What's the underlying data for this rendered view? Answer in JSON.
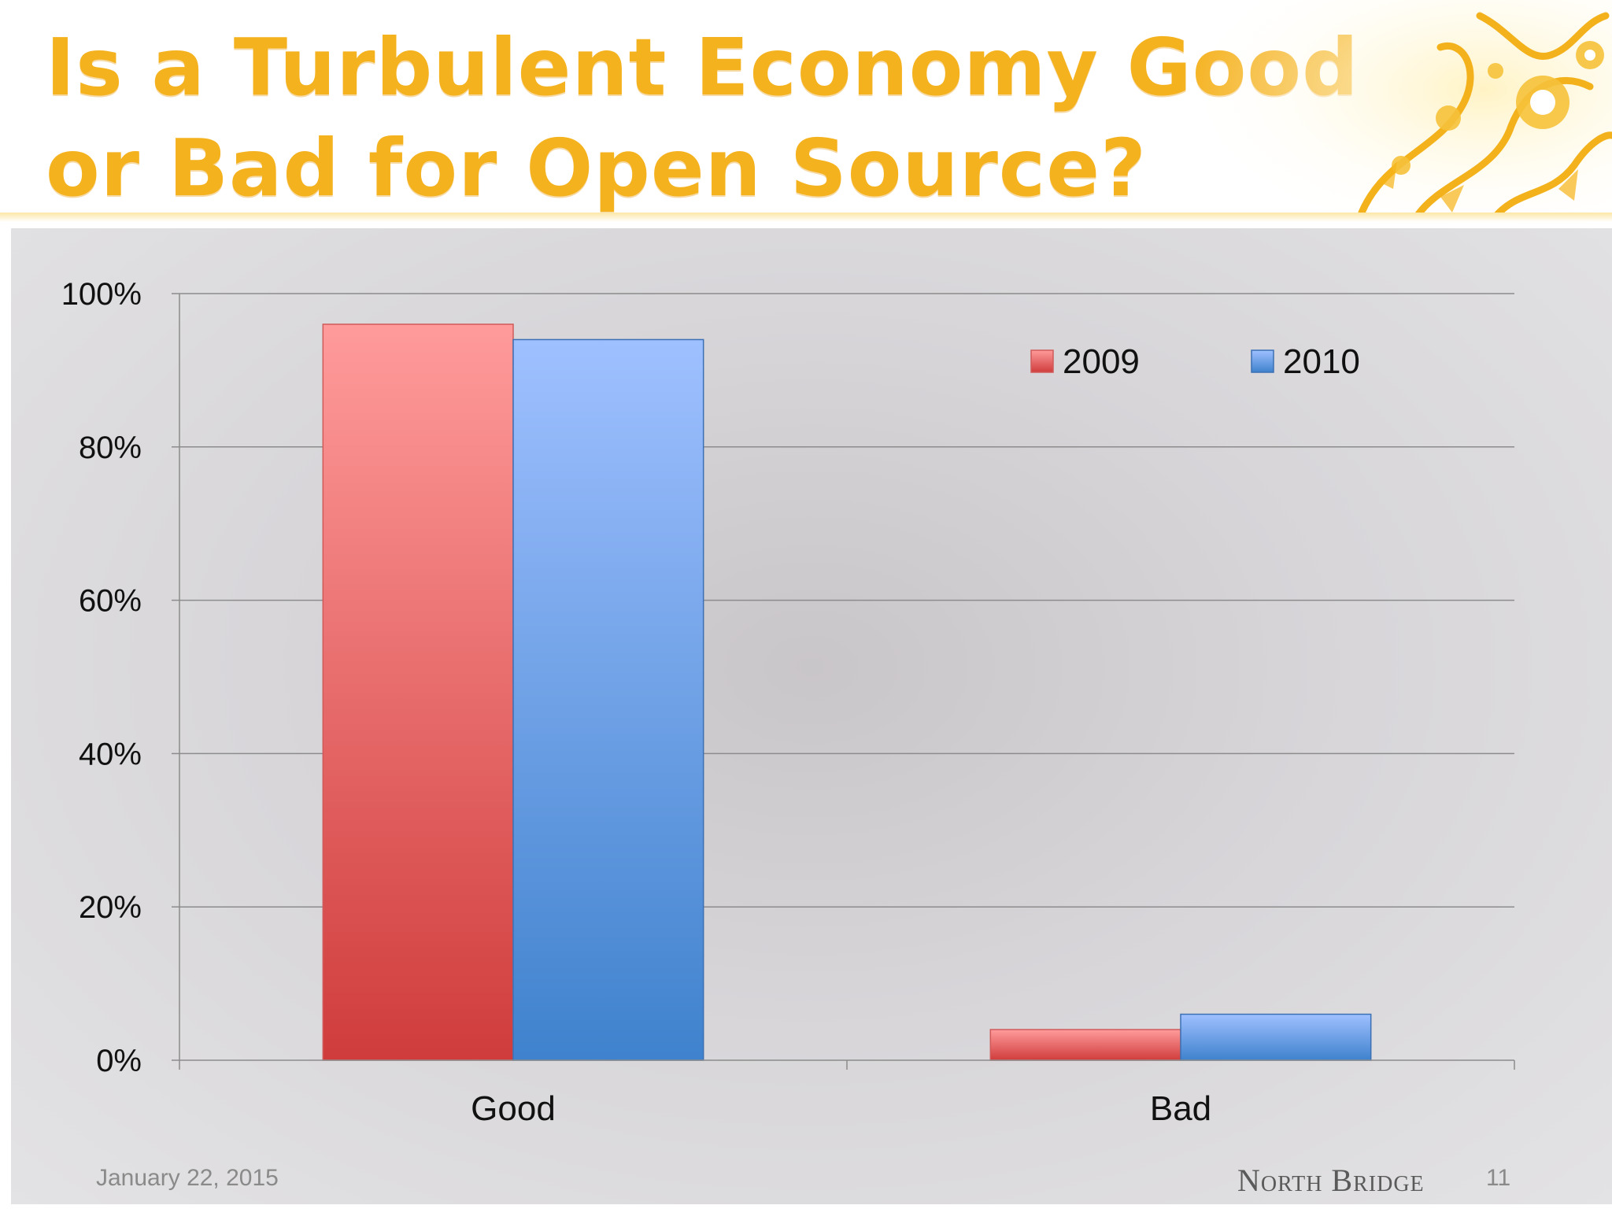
{
  "slide": {
    "title_line1": "Is a Turbulent Economy Good",
    "title_line2": "or Bad for Open Source?",
    "footer_date": "January 22, 2015",
    "footer_brand": "North Bridge",
    "page_number": "11"
  },
  "colors": {
    "title": "#f5b21f",
    "series_2009_top": "#ff9b9b",
    "series_2009_bottom": "#d03c3c",
    "series_2010_top": "#9fc0ff",
    "series_2010_bottom": "#3f82cd"
  },
  "chart_data": {
    "type": "bar",
    "title": "",
    "xlabel": "",
    "ylabel": "",
    "categories": [
      "Good",
      "Bad"
    ],
    "series": [
      {
        "name": "2009",
        "values": [
          96,
          4
        ]
      },
      {
        "name": "2010",
        "values": [
          94,
          6
        ]
      }
    ],
    "ylim": [
      0,
      100
    ],
    "yticks": [
      0,
      20,
      40,
      60,
      80,
      100
    ],
    "ytick_labels": [
      "0%",
      "20%",
      "40%",
      "60%",
      "80%",
      "100%"
    ],
    "grid": true,
    "legend_position": "top-right"
  }
}
